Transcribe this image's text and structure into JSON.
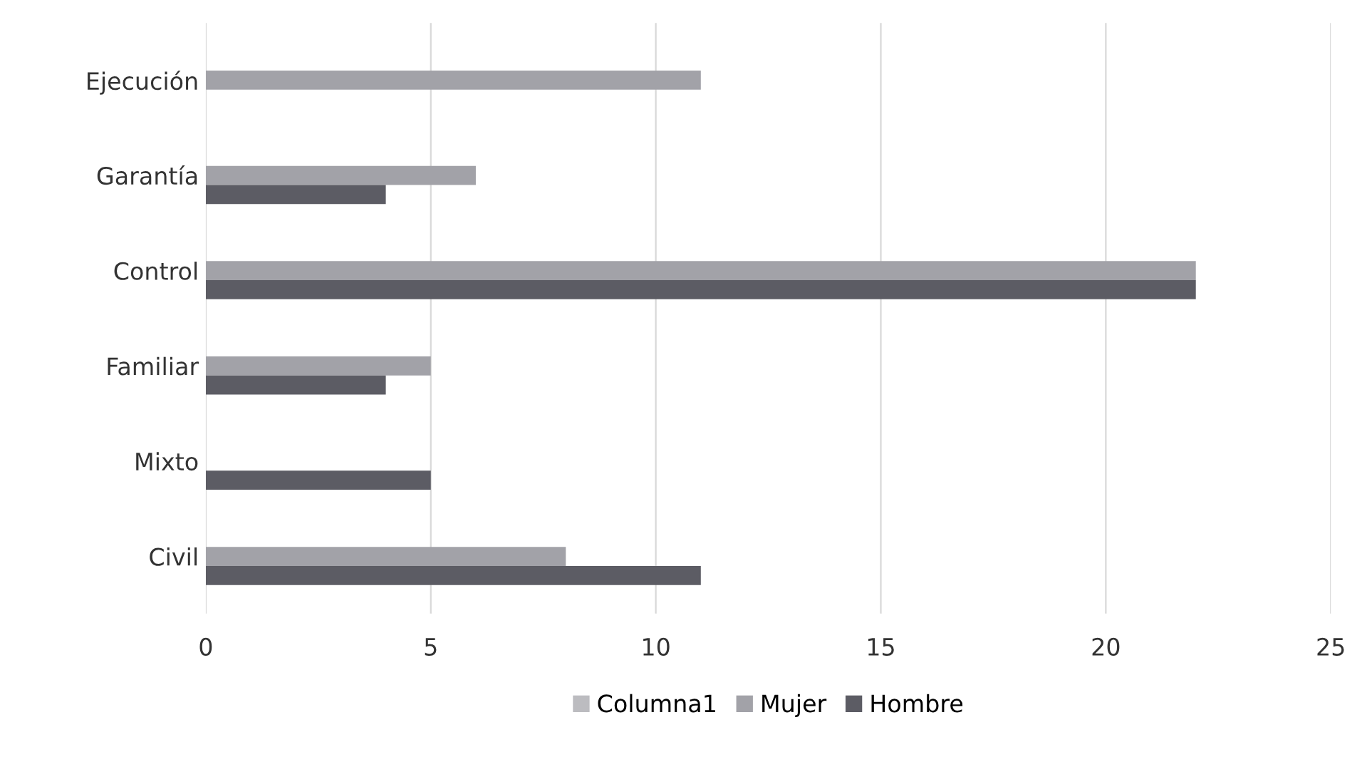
{
  "chart_data": {
    "type": "bar",
    "orientation": "horizontal",
    "categories": [
      "Ejecución",
      "Garantía",
      "Control",
      "Familiar",
      "Mixto",
      "Civil"
    ],
    "series": [
      {
        "name": "Columna1",
        "color": "#bcbcc0",
        "values": [
          null,
          null,
          null,
          null,
          null,
          null
        ]
      },
      {
        "name": "Mujer",
        "color": "#a2a2a8",
        "values": [
          11,
          6,
          22,
          5,
          null,
          8
        ]
      },
      {
        "name": "Hombre",
        "color": "#5c5c64",
        "values": [
          null,
          4,
          22,
          4,
          5,
          11
        ]
      }
    ],
    "xlim": [
      0,
      25
    ],
    "xticks": [
      0,
      5,
      10,
      15,
      20,
      25
    ],
    "grid": "x",
    "legend": "bottom"
  }
}
